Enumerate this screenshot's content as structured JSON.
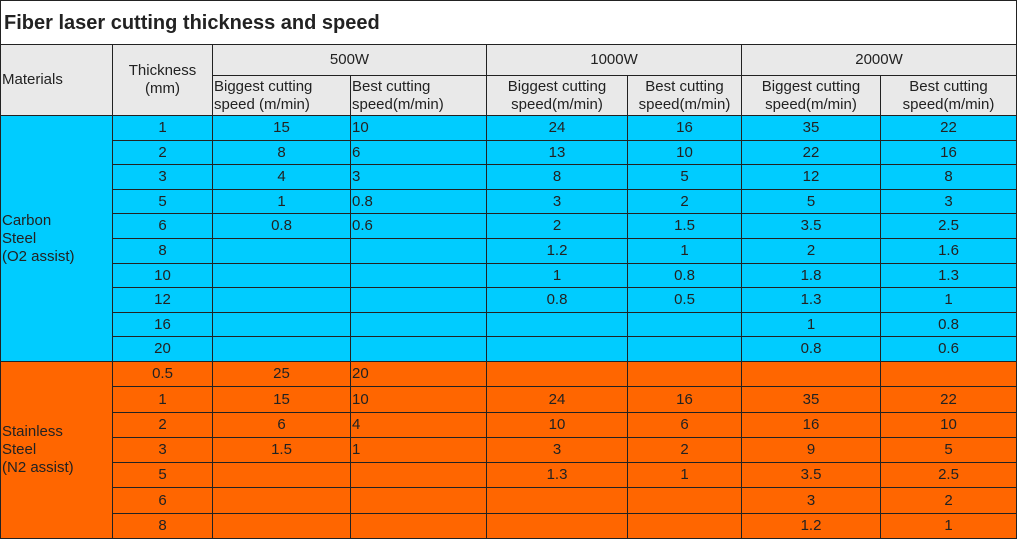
{
  "header": {
    "title": "Fiber laser cutting thickness and speed"
  },
  "table": {
    "columns": {
      "materials": "Materials",
      "thickness": [
        "Thickness",
        "(mm)"
      ],
      "powers": [
        "500W",
        "1000W",
        "2000W"
      ],
      "speeds": [
        [
          "Biggest cutting",
          "speed (m/min)"
        ],
        [
          "Best cutting",
          "speed(m/min)"
        ],
        [
          "Biggest cutting",
          "speed(m/min)"
        ],
        [
          "Best cutting",
          "speed(m/min)"
        ],
        [
          "Biggest cutting",
          "speed(m/min)"
        ],
        [
          "Best cutting",
          "speed(m/min)"
        ]
      ]
    },
    "groups": [
      {
        "material": [
          "Carbon",
          "Steel",
          "(O2 assist)"
        ],
        "color": "#00ccff",
        "rows": [
          [
            1,
            15,
            10,
            24,
            16,
            35,
            22
          ],
          [
            2,
            8,
            6,
            13,
            10,
            22,
            16
          ],
          [
            3,
            4,
            3,
            8,
            5,
            12,
            8
          ],
          [
            5,
            1,
            0.8,
            3,
            2,
            5,
            3
          ],
          [
            6,
            0.8,
            0.6,
            2,
            1.5,
            3.5,
            2.5
          ],
          [
            8,
            null,
            null,
            1.2,
            1,
            2,
            1.6
          ],
          [
            10,
            null,
            null,
            1,
            0.8,
            1.8,
            1.3
          ],
          [
            12,
            null,
            null,
            0.8,
            0.5,
            1.3,
            1
          ],
          [
            16,
            null,
            null,
            null,
            null,
            1,
            0.8
          ],
          [
            20,
            null,
            null,
            null,
            null,
            0.8,
            0.6
          ]
        ]
      },
      {
        "material": [
          "Stainless",
          "Steel",
          "(N2 assist)"
        ],
        "color": "#ff6600",
        "rows": [
          [
            0.5,
            25,
            20,
            null,
            null,
            null,
            null
          ],
          [
            1,
            15,
            10,
            24,
            16,
            35,
            22
          ],
          [
            2,
            6,
            4,
            10,
            6,
            16,
            10
          ],
          [
            3,
            1.5,
            1,
            3,
            2,
            9,
            5
          ],
          [
            5,
            null,
            null,
            1.3,
            1,
            3.5,
            2.5
          ],
          [
            6,
            null,
            null,
            null,
            null,
            3,
            2
          ],
          [
            8,
            null,
            null,
            null,
            null,
            1.2,
            1
          ]
        ]
      }
    ]
  }
}
